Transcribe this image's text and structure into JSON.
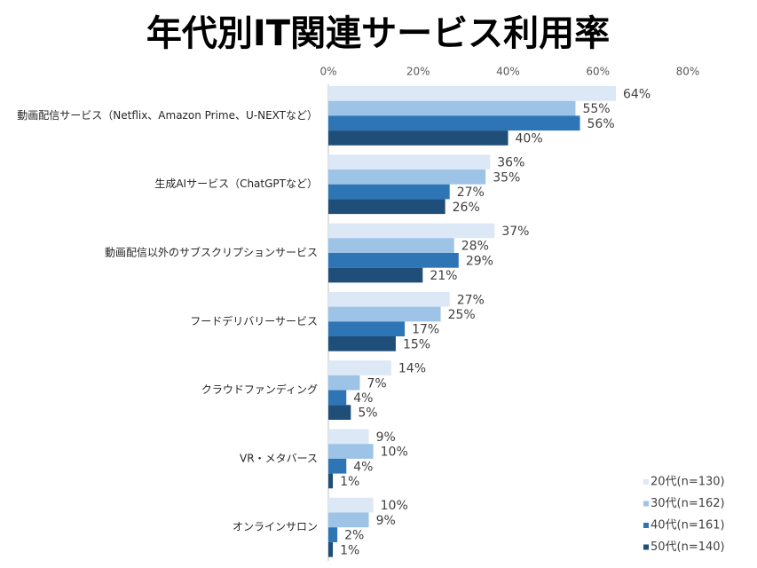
{
  "chart_data": {
    "type": "bar",
    "orientation": "horizontal",
    "title": "年代別IT関連サービス利用率",
    "categories": [
      "動画配信サービス（Netflix、Amazon Prime、U-NEXTなど）",
      "生成AIサービス（ChatGPTなど）",
      "動画配信以外のサブスクリプションサービス",
      "フードデリバリーサービス",
      "クラウドファンディング",
      "VR・メタバース",
      "オンラインサロン"
    ],
    "series": [
      {
        "name": "20代(n=130)",
        "color": "#dce8f5",
        "values": [
          64,
          36,
          37,
          27,
          14,
          9,
          10
        ],
        "value_labels": [
          "64%",
          "36%",
          "37%",
          "27%",
          "14%",
          "9%",
          "10%"
        ]
      },
      {
        "name": "30代(n=162)",
        "color": "#9dc3e6",
        "values": [
          55,
          35,
          28,
          25,
          7,
          10,
          9
        ],
        "value_labels": [
          "55%",
          "35%",
          "28%",
          "25%",
          "7%",
          "10%",
          "9%"
        ]
      },
      {
        "name": "40代(n=161)",
        "color": "#2e75b6",
        "values": [
          56,
          27,
          29,
          17,
          4,
          4,
          2
        ],
        "value_labels": [
          "56%",
          "27%",
          "29%",
          "17%",
          "4%",
          "4%",
          "2%"
        ]
      },
      {
        "name": "50代(n=140)",
        "color": "#1f4e79",
        "values": [
          40,
          26,
          21,
          15,
          5,
          1,
          1
        ],
        "value_labels": [
          "40%",
          "26%",
          "21%",
          "15%",
          "5%",
          "1%",
          "1%"
        ]
      }
    ],
    "xlim": [
      0,
      80
    ],
    "xticks": [
      {
        "value": 0,
        "label": "0%"
      },
      {
        "value": 20,
        "label": "20%"
      },
      {
        "value": 40,
        "label": "40%"
      },
      {
        "value": 60,
        "label": "60%"
      },
      {
        "value": 80,
        "label": "80%"
      }
    ],
    "grid": false,
    "legend": "bottom-right"
  }
}
